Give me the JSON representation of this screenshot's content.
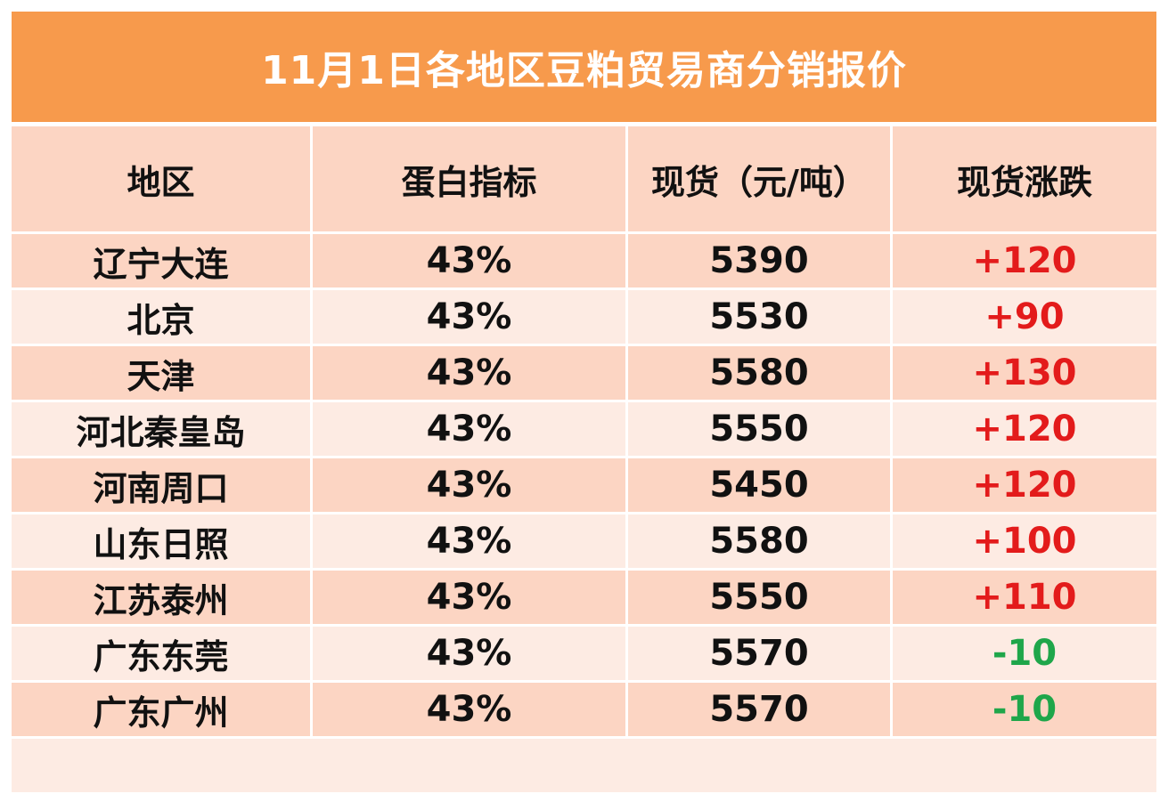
{
  "title": "11月1日各地区豆粕贸易商分销报价",
  "headers": [
    "地区",
    "蛋白指标",
    "现货（元/吨）",
    "现货涨跌"
  ],
  "rows": [
    {
      "region": "辽宁大连",
      "protein": "43%",
      "price": "5390",
      "change": "+120",
      "direction": "up"
    },
    {
      "region": "北京",
      "protein": "43%",
      "price": "5530",
      "change": "+90",
      "direction": "up"
    },
    {
      "region": "天津",
      "protein": "43%",
      "price": "5580",
      "change": "+130",
      "direction": "up"
    },
    {
      "region": "河北秦皇岛",
      "protein": "43%",
      "price": "5550",
      "change": "+120",
      "direction": "up"
    },
    {
      "region": "河南周口",
      "protein": "43%",
      "price": "5450",
      "change": "+120",
      "direction": "up"
    },
    {
      "region": "山东日照",
      "protein": "43%",
      "price": "5580",
      "change": "+100",
      "direction": "up"
    },
    {
      "region": "江苏泰州",
      "protein": "43%",
      "price": "5550",
      "change": "+110",
      "direction": "up"
    },
    {
      "region": "广东东莞",
      "protein": "43%",
      "price": "5570",
      "change": "-10",
      "direction": "down"
    },
    {
      "region": "广东广州",
      "protein": "43%",
      "price": "5570",
      "change": "-10",
      "direction": "down"
    }
  ],
  "colors": {
    "title_bg": "#f79a4c",
    "header_bg": "#fcd5c3",
    "row_light": "#fdebe3",
    "row_dark": "#fcd5c3",
    "up": "#e31b1b",
    "down": "#1fa64a"
  }
}
